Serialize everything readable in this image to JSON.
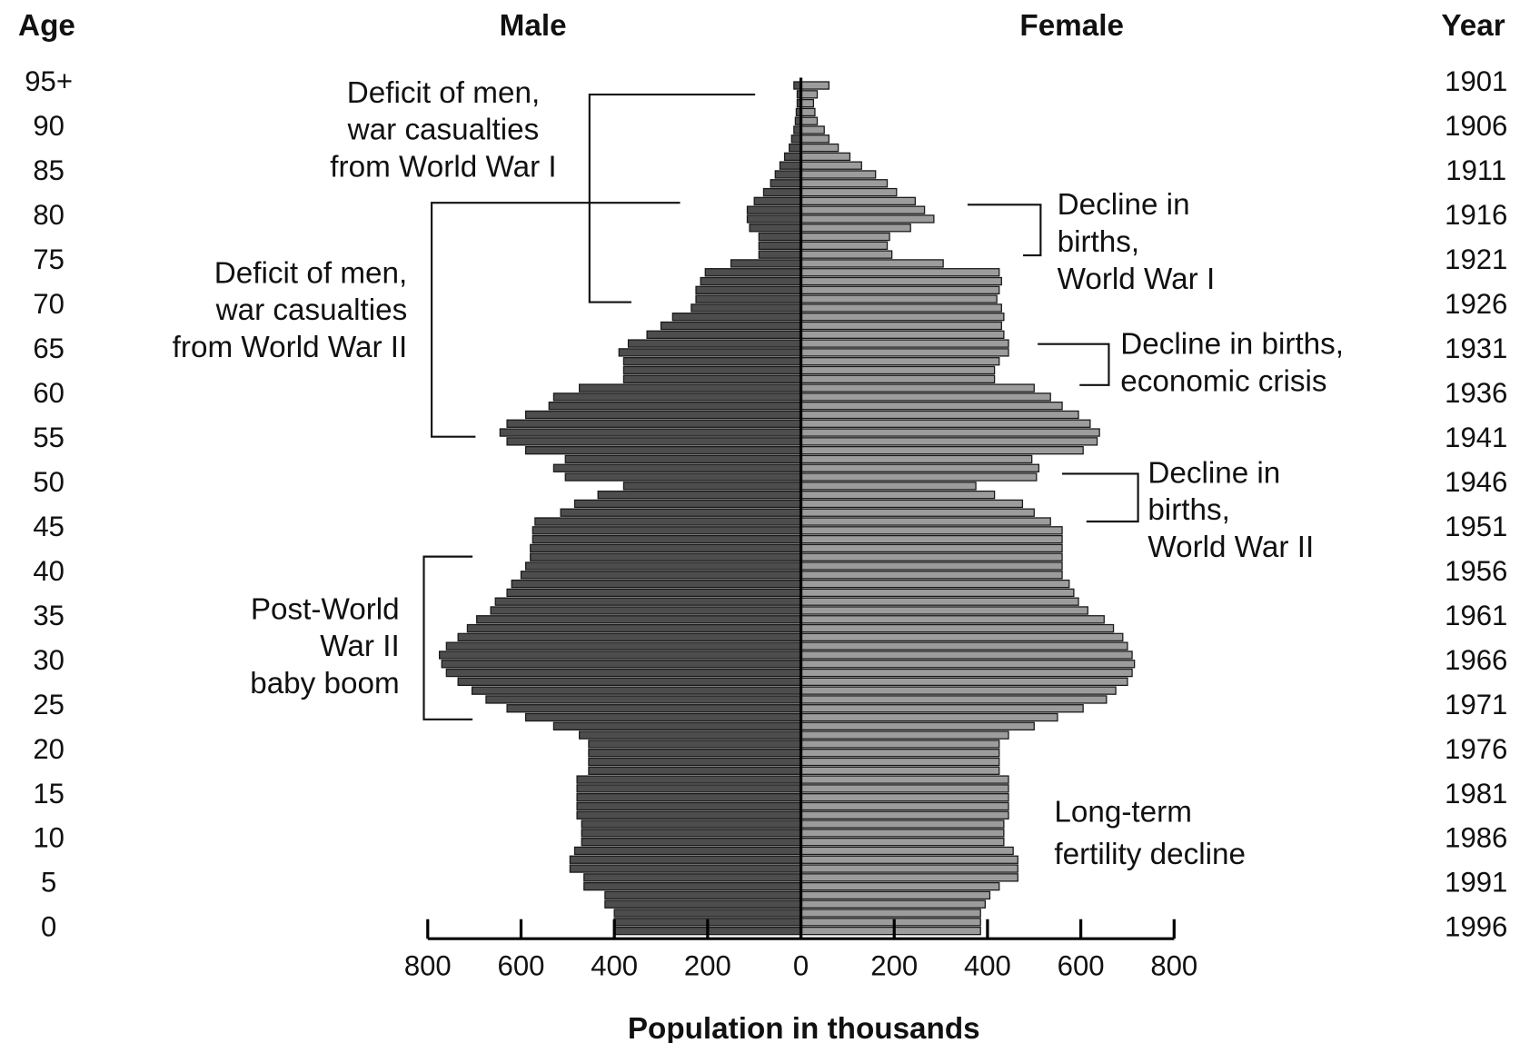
{
  "chart_data": {
    "type": "population_pyramid",
    "headers": {
      "age": "Age",
      "male": "Male",
      "female": "Female",
      "year": "Year"
    },
    "xlabel": "Population in thousands",
    "categories": [
      "0",
      null,
      null,
      null,
      null,
      "5",
      null,
      null,
      null,
      null,
      "10",
      null,
      null,
      null,
      null,
      "15",
      null,
      null,
      null,
      null,
      "20",
      null,
      null,
      null,
      null,
      "25",
      null,
      null,
      null,
      null,
      "30",
      null,
      null,
      null,
      null,
      "35",
      null,
      null,
      null,
      null,
      "40",
      null,
      null,
      null,
      null,
      "45",
      null,
      null,
      null,
      null,
      "50",
      null,
      null,
      null,
      null,
      "55",
      null,
      null,
      null,
      null,
      "60",
      null,
      null,
      null,
      null,
      "65",
      null,
      null,
      null,
      null,
      "70",
      null,
      null,
      null,
      null,
      "75",
      null,
      null,
      null,
      null,
      "80",
      null,
      null,
      null,
      null,
      "85",
      null,
      null,
      null,
      null,
      "90",
      null,
      null,
      null,
      null,
      "95+"
    ],
    "year_labels": [
      "1996",
      null,
      null,
      null,
      null,
      "1991",
      null,
      null,
      null,
      null,
      "1986",
      null,
      null,
      null,
      null,
      "1981",
      null,
      null,
      null,
      null,
      "1976",
      null,
      null,
      null,
      null,
      "1971",
      null,
      null,
      null,
      null,
      "1966",
      null,
      null,
      null,
      null,
      "1961",
      null,
      null,
      null,
      null,
      "1956",
      null,
      null,
      null,
      null,
      "1951",
      null,
      null,
      null,
      null,
      "1946",
      null,
      null,
      null,
      null,
      "1941",
      null,
      null,
      null,
      null,
      "1936",
      null,
      null,
      null,
      null,
      "1931",
      null,
      null,
      null,
      null,
      "1926",
      null,
      null,
      null,
      null,
      "1921",
      null,
      null,
      null,
      null,
      "1916",
      null,
      null,
      null,
      null,
      "1911",
      null,
      null,
      null,
      null,
      "1906",
      null,
      null,
      null,
      null,
      "1901"
    ],
    "series": [
      {
        "name": "Male",
        "side": "left",
        "color": "#4d4d4d",
        "values": [
          400,
          400,
          400,
          420,
          420,
          465,
          465,
          495,
          495,
          485,
          470,
          470,
          470,
          480,
          480,
          480,
          480,
          480,
          455,
          455,
          455,
          455,
          475,
          530,
          590,
          630,
          675,
          705,
          735,
          760,
          770,
          775,
          760,
          735,
          715,
          695,
          665,
          655,
          630,
          620,
          600,
          590,
          580,
          580,
          575,
          575,
          570,
          515,
          485,
          435,
          380,
          505,
          530,
          505,
          590,
          630,
          645,
          630,
          590,
          540,
          530,
          475,
          380,
          380,
          380,
          390,
          370,
          330,
          300,
          275,
          235,
          225,
          225,
          215,
          205,
          150,
          90,
          90,
          90,
          110,
          115,
          115,
          100,
          80,
          65,
          55,
          45,
          35,
          25,
          20,
          15,
          12,
          10,
          8,
          8,
          15
        ]
      },
      {
        "name": "Female",
        "side": "right",
        "color": "#9c9c9c",
        "values": [
          385,
          385,
          385,
          395,
          405,
          425,
          465,
          465,
          465,
          455,
          435,
          435,
          435,
          445,
          445,
          445,
          445,
          445,
          425,
          425,
          425,
          425,
          445,
          500,
          550,
          605,
          655,
          675,
          700,
          710,
          715,
          710,
          700,
          690,
          670,
          650,
          615,
          595,
          585,
          575,
          560,
          560,
          560,
          560,
          560,
          560,
          535,
          500,
          475,
          415,
          375,
          505,
          510,
          495,
          605,
          635,
          640,
          620,
          595,
          560,
          535,
          500,
          415,
          415,
          425,
          445,
          445,
          435,
          430,
          435,
          430,
          420,
          425,
          430,
          425,
          305,
          195,
          185,
          190,
          235,
          285,
          265,
          245,
          205,
          185,
          160,
          130,
          105,
          80,
          60,
          50,
          35,
          30,
          27,
          35,
          60
        ]
      }
    ],
    "xlim": [
      0,
      800
    ],
    "xticks": [
      0,
      200,
      400,
      600,
      800
    ],
    "annotations": [
      {
        "lines": [
          "Deficit of men,",
          "war casualties",
          "from World War I"
        ]
      },
      {
        "lines": [
          "Deficit of men,",
          "war casualties",
          "from World War II"
        ]
      },
      {
        "lines": [
          "Decline in",
          "births,",
          "World War I"
        ]
      },
      {
        "lines": [
          "Decline in births,",
          "economic crisis"
        ]
      },
      {
        "lines": [
          "Decline in",
          "births,",
          "World War II"
        ]
      },
      {
        "lines": [
          "Post-World",
          "War II",
          "baby boom"
        ]
      },
      {
        "lines": [
          "Long-term",
          "fertility decline"
        ]
      }
    ]
  }
}
